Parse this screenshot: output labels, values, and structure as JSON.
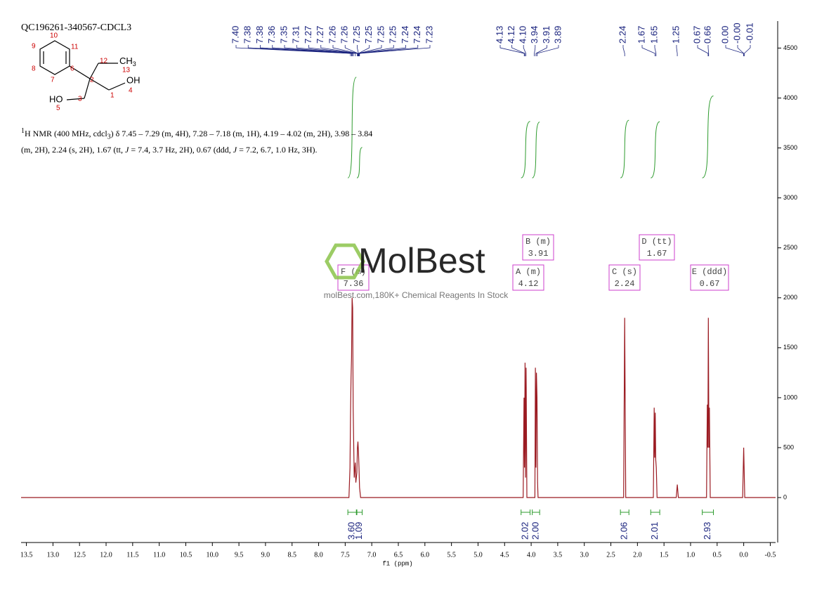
{
  "title": "QC196261-340567-CDCL3",
  "structure": {
    "labels": [
      "HO",
      "5",
      "3",
      "2",
      "1",
      "4",
      "OH",
      "12",
      "13",
      "CH",
      "3",
      "6",
      "7",
      "8",
      "9",
      "10",
      "11"
    ]
  },
  "description": [
    "1",
    "H NMR (400 MHz, cdcl",
    "3",
    ") δ 7.45 – 7.29 (m, 4H), 7.28 – 7.18 (m, 1H), 4.19 – 4.02 (m, 2H), 3.98 – 3.84",
    "(m, 2H), 2.24 (s, 2H), 1.67 (tt, ",
    "J",
    " = 7.4, 3.7 Hz, 2H), 0.67 (ddd, ",
    "J",
    " = 7.2, 6.7, 1.0 Hz, 3H)."
  ],
  "watermark": {
    "brand": "MolBest",
    "slogan": "molBest.com,180K+ Chemical Reagents In Stock"
  },
  "chart_data": {
    "type": "line",
    "xlabel": "f1 (ppm)",
    "xlim": [
      13.6,
      -0.6
    ],
    "ylim": [
      -450,
      4770
    ],
    "xticks": [
      13.5,
      {
        "value": 13,
        "label": "13.0"
      },
      12.5,
      {
        "value": 12,
        "label": "12.0"
      },
      11.5,
      {
        "value": 11,
        "label": "11.0"
      },
      10.5,
      {
        "value": 10,
        "label": "10.0"
      },
      9.5,
      {
        "value": 9,
        "label": "9.0"
      },
      8.5,
      {
        "value": 8,
        "label": "8.0"
      },
      7.5,
      {
        "value": 7,
        "label": "7.0"
      },
      6.5,
      {
        "value": 6,
        "label": "6.0"
      },
      5.5,
      {
        "value": 5,
        "label": "5.0"
      },
      4.5,
      {
        "value": 4,
        "label": "4.0"
      },
      3.5,
      {
        "value": 3,
        "label": "3.0"
      },
      2.5,
      {
        "value": 2,
        "label": "2.0"
      },
      1.5,
      {
        "value": 1,
        "label": "1.0"
      },
      0.5,
      {
        "value": 0,
        "label": "0.0"
      },
      -0.5
    ],
    "yticks": [
      0,
      500,
      1000,
      1500,
      2000,
      2500,
      3000,
      3500,
      4000,
      4500
    ],
    "series": [
      {
        "color": "#9b1b22",
        "x": [
          13.6,
          7.43,
          7.41,
          7.4,
          7.39,
          7.38,
          7.37,
          7.36,
          7.35,
          7.33,
          7.31,
          7.3,
          7.28,
          7.27,
          7.26,
          7.25,
          7.24,
          7.23,
          7.21,
          4.15,
          4.135,
          4.125,
          4.115,
          4.105,
          4.095,
          4.08,
          3.93,
          3.92,
          3.91,
          3.9,
          3.89,
          3.88,
          3.87,
          2.26,
          2.24,
          2.22,
          1.7,
          1.685,
          1.675,
          1.665,
          1.655,
          1.645,
          1.63,
          1.27,
          1.25,
          1.23,
          0.7,
          0.685,
          0.675,
          0.665,
          0.655,
          0.645,
          0.63,
          0.02,
          0.0,
          -0.02,
          -0.6
        ],
        "values": [
          0,
          0,
          300,
          800,
          1200,
          1400,
          2000,
          1900,
          900,
          200,
          350,
          150,
          250,
          500,
          560,
          450,
          300,
          100,
          0,
          0,
          1000,
          300,
          1350,
          200,
          1300,
          0,
          0,
          1300,
          300,
          1250,
          1000,
          150,
          0,
          0,
          1800,
          0,
          0,
          900,
          400,
          850,
          380,
          300,
          0,
          0,
          130,
          0,
          0,
          930,
          500,
          1800,
          500,
          900,
          0,
          0,
          500,
          0,
          0
        ]
      }
    ],
    "peak_label_groups": [
      [
        "7.40",
        "7.38",
        "7.38",
        "7.36",
        "7.35",
        "7.31",
        "7.27",
        "7.27",
        "7.26",
        "7.26",
        "7.25",
        "7.25",
        "7.25",
        "7.25",
        "7.24",
        "7.24",
        "7.23"
      ],
      [
        "4.13",
        "4.12",
        "4.10",
        "3.94",
        "3.91",
        "3.89"
      ],
      [
        "2.24",
        "1.67",
        "1.65",
        "1.25",
        "0.67",
        "0.66",
        "0.00",
        "-0.00",
        "-0.01"
      ]
    ],
    "integrals": {
      "color": "#2e9b2e",
      "ranges": [
        [
          7.45,
          7.29
        ],
        [
          7.28,
          7.18
        ],
        [
          4.19,
          4.02
        ],
        [
          3.98,
          3.84
        ],
        [
          2.32,
          2.16
        ],
        [
          1.75,
          1.58
        ],
        [
          0.78,
          0.57
        ]
      ],
      "values": [
        3.6,
        1.09,
        2.02,
        2.0,
        2.06,
        2.01,
        2.93
      ],
      "value_labels": [
        "3.60",
        "1.09",
        "2.02",
        "2.00",
        "2.06",
        "2.01",
        "2.93"
      ]
    },
    "multiplets": {
      "color": "#cc3fcc",
      "items": [
        {
          "name": "A (m)",
          "shift": "4.12"
        },
        {
          "name": "B (m)",
          "shift": "3.91"
        },
        {
          "name": "C (s)",
          "shift": "2.24"
        },
        {
          "name": "D (tt)",
          "shift": "1.67"
        },
        {
          "name": "E (ddd)",
          "shift": "0.67"
        },
        {
          "name": "F (m)",
          "shift": "7.36"
        }
      ]
    }
  }
}
